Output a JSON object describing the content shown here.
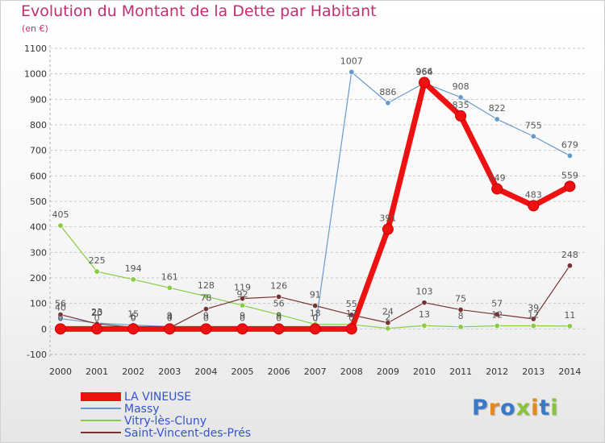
{
  "title": "Evolution du Montant de la Dette par Habitant",
  "subtitle": "(en €)",
  "logo": {
    "text": "Proxiti",
    "colors": [
      "#3a78c8",
      "#e38a1e",
      "#3a78c8",
      "#8ac43c",
      "#e38a1e",
      "#3a78c8",
      "#8ac43c"
    ]
  },
  "chart_data": {
    "type": "line",
    "title": "Evolution du Montant de la Dette par Habitant",
    "subtitle": "(en €)",
    "ylim": [
      -100,
      1100
    ],
    "yticks": [
      -100,
      0,
      100,
      200,
      300,
      400,
      500,
      600,
      700,
      800,
      900,
      1000,
      1100
    ],
    "x": [
      "2000",
      "2001",
      "2002",
      "2003",
      "2004",
      "2005",
      "2006",
      "2007",
      "2008",
      "2009",
      "2010",
      "2011",
      "2012",
      "2013",
      "2014"
    ],
    "grid": "y-dashed",
    "legend_position": "bottom-left",
    "series": [
      {
        "name": "LA VINEUSE",
        "color": "#ee1111",
        "values": [
          0,
          0,
          0,
          0,
          0,
          0,
          0,
          0,
          0,
          391,
          966,
          835,
          549,
          483,
          559
        ]
      },
      {
        "name": "Massy",
        "color": "#6699cc",
        "values": [
          40,
          23,
          15,
          9,
          9,
          9,
          9,
          0,
          1007,
          886,
          964,
          908,
          822,
          755,
          679
        ]
      },
      {
        "name": "Vitry-lès-Cluny",
        "color": "#88cc44",
        "values": [
          405,
          225,
          194,
          161,
          128,
          92,
          56,
          18,
          17,
          2,
          13,
          8,
          12,
          12,
          11
        ]
      },
      {
        "name": "Saint-Vincent-des-Prés",
        "color": "#773333",
        "values": [
          56,
          20,
          6,
          4,
          78,
          119,
          126,
          91,
          55,
          24,
          103,
          75,
          57,
          39,
          248
        ]
      }
    ]
  }
}
